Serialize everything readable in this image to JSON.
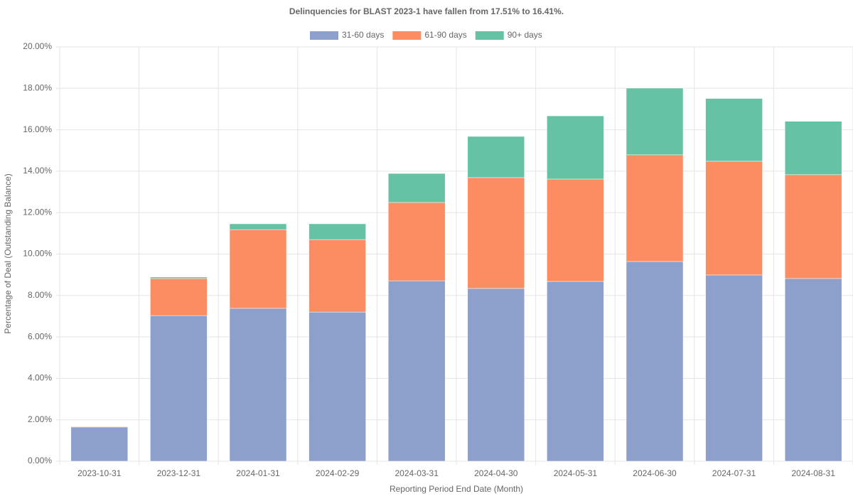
{
  "chart_data": {
    "type": "stacked-bar",
    "title": "Delinquencies for BLAST 2023-1 have fallen from 17.51% to 16.41%.",
    "x_label": "Reporting Period End Date (Month)",
    "y_label": "Percentage of Deal (Outstanding Balance)",
    "categories": [
      "2023-10-31",
      "2023-12-31",
      "2024-01-31",
      "2024-02-29",
      "2024-03-31",
      "2024-04-30",
      "2024-05-31",
      "2024-06-30",
      "2024-07-31",
      "2024-08-31"
    ],
    "series": [
      {
        "name": "31-60 days",
        "color": "#8da0cb",
        "values": [
          1.65,
          7.03,
          7.38,
          7.2,
          8.71,
          8.34,
          8.68,
          9.64,
          8.99,
          8.82
        ]
      },
      {
        "name": "61-90 days",
        "color": "#fc8d62",
        "values": [
          0.03,
          1.79,
          3.8,
          3.5,
          3.78,
          5.35,
          4.94,
          5.15,
          5.49,
          5.01
        ]
      },
      {
        "name": "90+ days",
        "color": "#66c2a5",
        "values": [
          0.01,
          0.07,
          0.28,
          0.76,
          1.4,
          1.99,
          3.05,
          3.22,
          3.03,
          2.58
        ]
      }
    ],
    "ylim": [
      0,
      20
    ],
    "yticks": [
      {
        "value": 0,
        "label": "0.00%"
      },
      {
        "value": 2,
        "label": "2.00%"
      },
      {
        "value": 4,
        "label": "4.00%"
      },
      {
        "value": 6,
        "label": "6.00%"
      },
      {
        "value": 8,
        "label": "8.00%"
      },
      {
        "value": 10,
        "label": "10.00%"
      },
      {
        "value": 12,
        "label": "12.00%"
      },
      {
        "value": 14,
        "label": "14.00%"
      },
      {
        "value": 16,
        "label": "16.00%"
      },
      {
        "value": 18,
        "label": "18.00%"
      },
      {
        "value": 20,
        "label": "20.00%"
      }
    ],
    "grid": true
  }
}
